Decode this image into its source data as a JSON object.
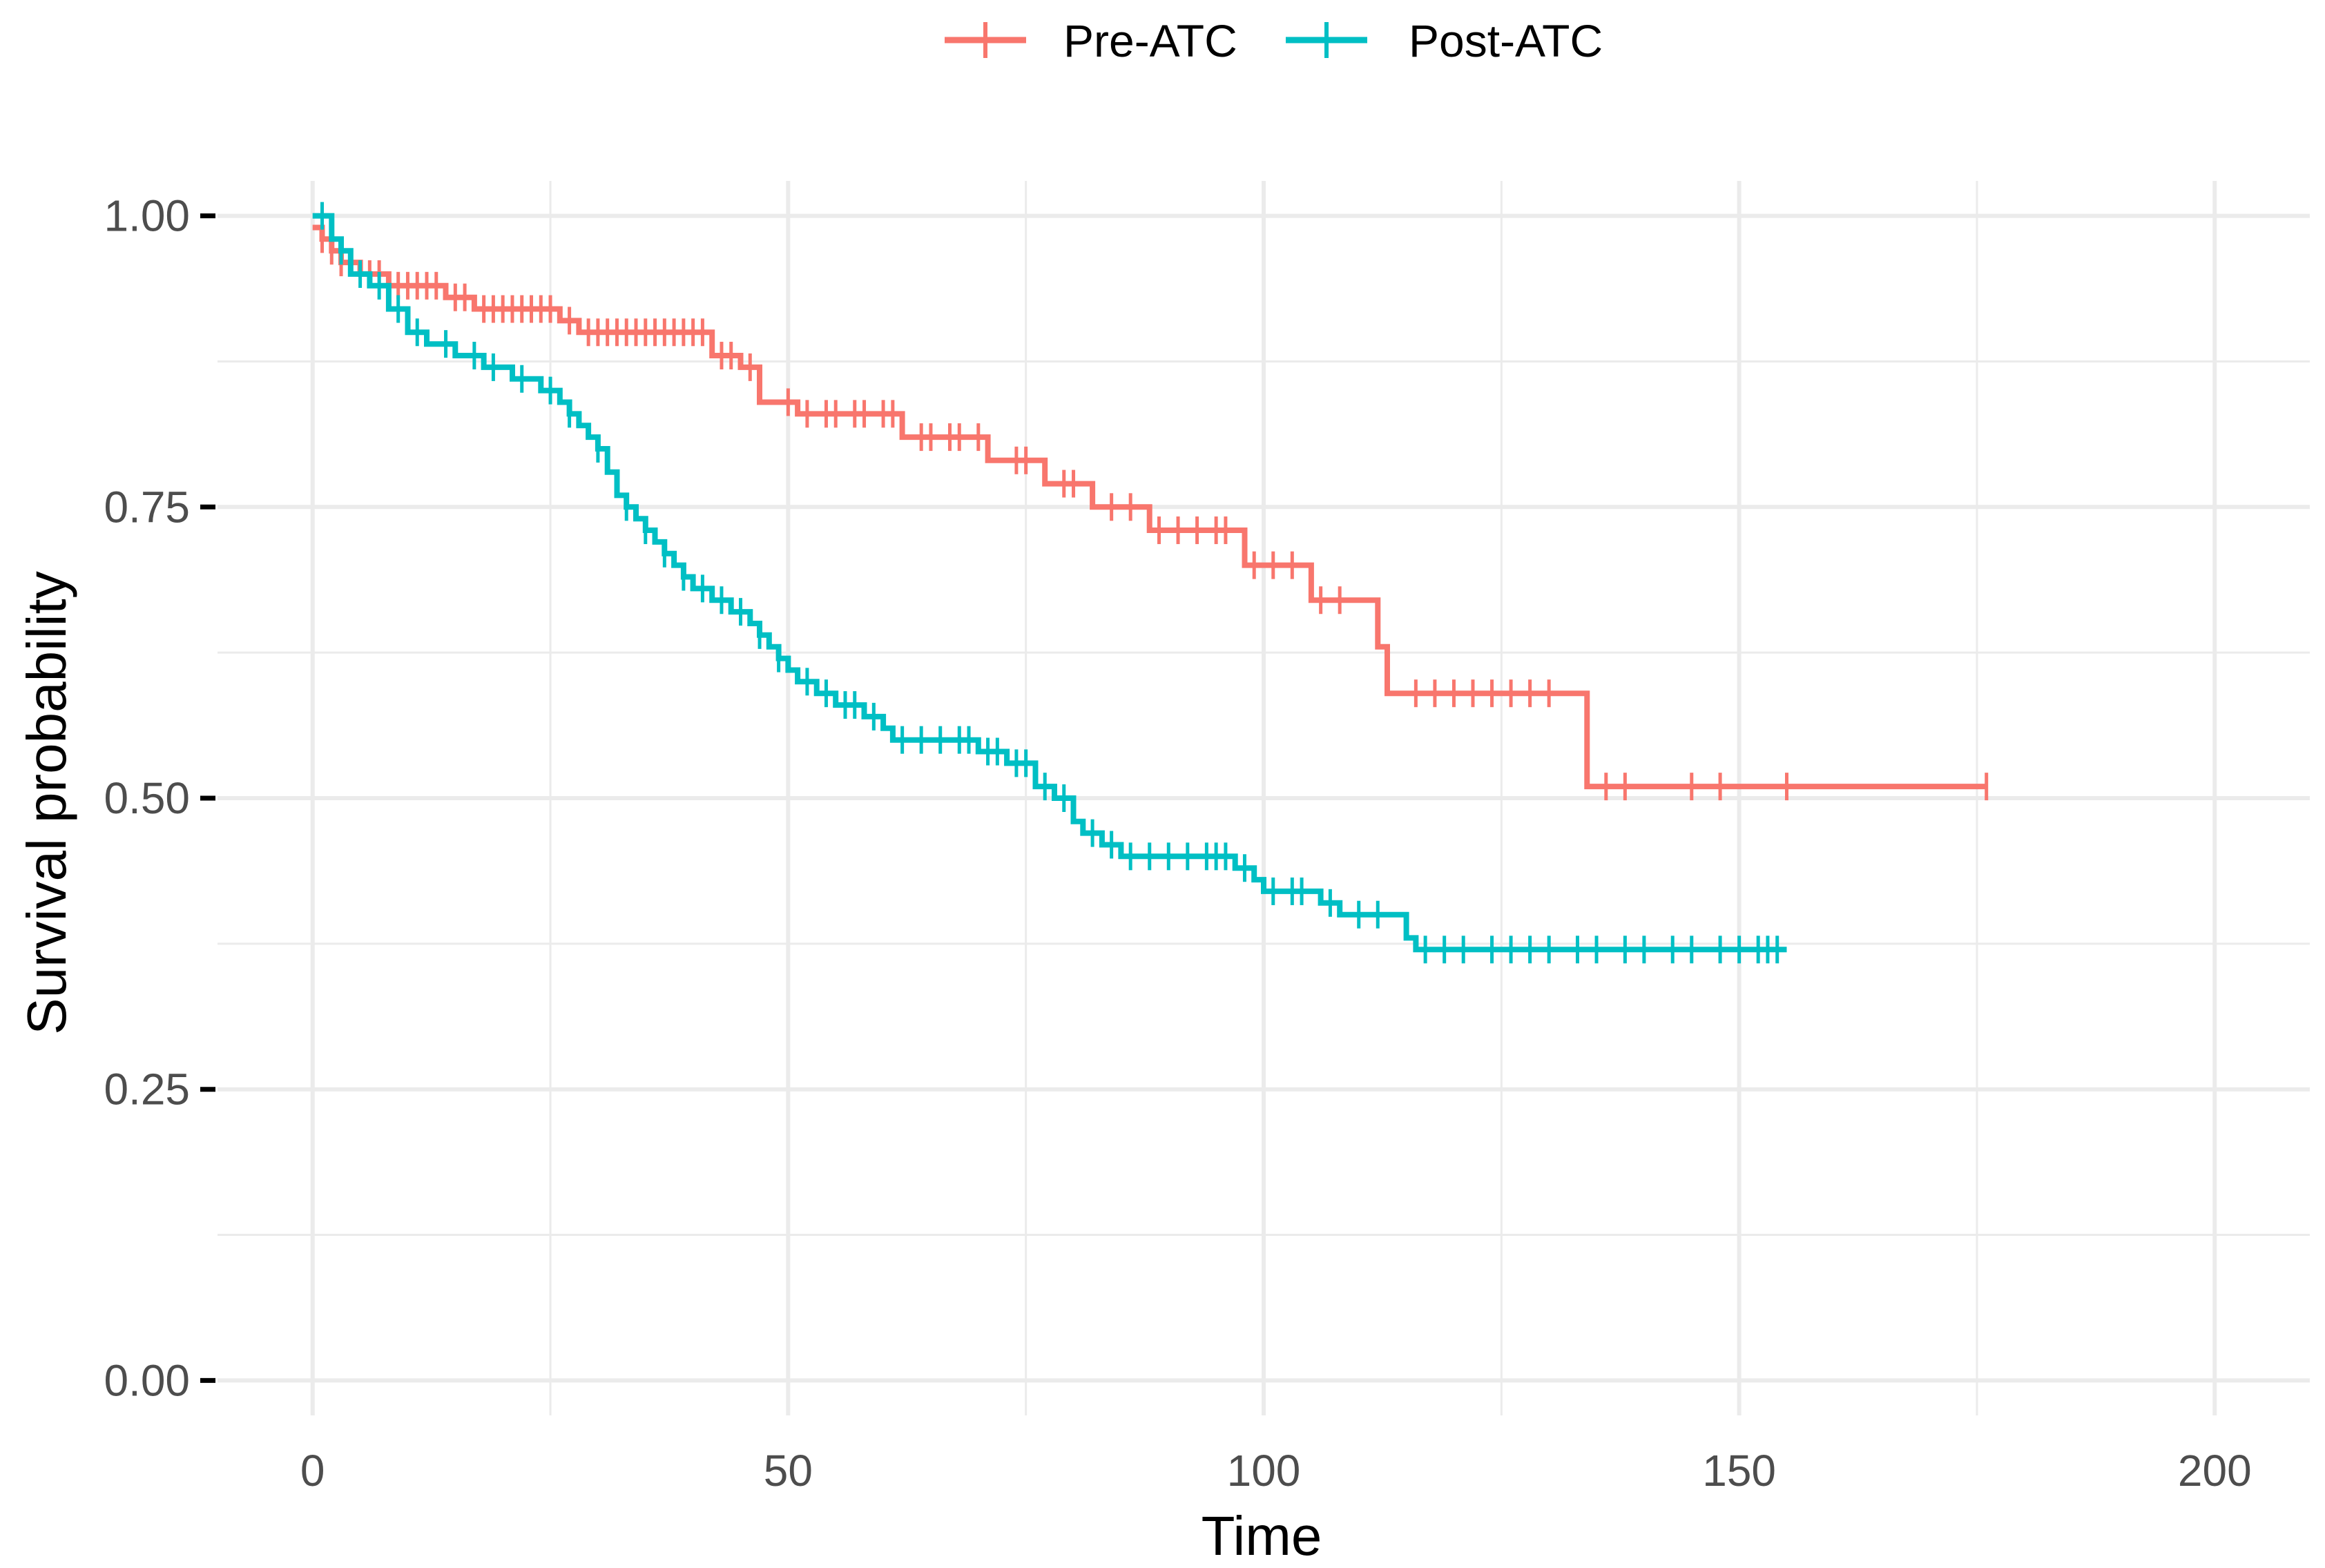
{
  "chart_data": {
    "type": "line",
    "title": "",
    "xlabel": "Time",
    "ylabel": "Survival probability",
    "xlim": [
      -10,
      210
    ],
    "ylim": [
      -0.03,
      1.03
    ],
    "x_ticks": [
      0,
      50,
      100,
      150,
      200
    ],
    "y_ticks": [
      0.0,
      0.25,
      0.5,
      0.75,
      1.0
    ],
    "x_tick_labels": [
      "0",
      "50",
      "100",
      "150",
      "200"
    ],
    "y_tick_labels": [
      "0.00",
      "0.25",
      "0.50",
      "0.75",
      "1.00"
    ],
    "grid": true,
    "legend_position": "top",
    "step": "post",
    "series": [
      {
        "name": "Pre-ATC",
        "color": "#F8766D",
        "steps": [
          [
            0,
            0.99
          ],
          [
            1,
            0.98
          ],
          [
            2,
            0.97
          ],
          [
            3,
            0.96
          ],
          [
            5,
            0.95
          ],
          [
            8,
            0.94
          ],
          [
            14,
            0.93
          ],
          [
            17,
            0.92
          ],
          [
            26,
            0.91
          ],
          [
            28,
            0.9
          ],
          [
            42,
            0.88
          ],
          [
            45,
            0.87
          ],
          [
            47,
            0.84
          ],
          [
            51,
            0.83
          ],
          [
            62,
            0.81
          ],
          [
            71,
            0.79
          ],
          [
            77,
            0.77
          ],
          [
            82,
            0.75
          ],
          [
            88,
            0.73
          ],
          [
            98,
            0.7
          ],
          [
            105,
            0.67
          ],
          [
            112,
            0.63
          ],
          [
            113,
            0.59
          ],
          [
            134,
            0.51
          ],
          [
            176,
            0.51
          ]
        ],
        "censored": [
          1,
          2,
          3,
          4,
          6,
          7,
          9,
          10,
          11,
          12,
          13,
          15,
          16,
          18,
          19,
          20,
          21,
          22,
          23,
          24,
          25,
          27,
          29,
          30,
          31,
          32,
          33,
          34,
          35,
          36,
          37,
          38,
          39,
          40,
          41,
          43,
          44,
          46,
          50,
          52,
          54,
          55,
          57,
          58,
          60,
          61,
          64,
          65,
          67,
          68,
          70,
          74,
          75,
          79,
          80,
          84,
          86,
          89,
          91,
          93,
          95,
          96,
          99,
          101,
          103,
          106,
          108,
          116,
          118,
          120,
          122,
          124,
          126,
          128,
          130,
          136,
          138,
          145,
          148,
          155,
          176
        ]
      },
      {
        "name": "Post-ATC",
        "color": "#00BFC4",
        "steps": [
          [
            0,
            1.0
          ],
          [
            2,
            0.98
          ],
          [
            3,
            0.97
          ],
          [
            4,
            0.95
          ],
          [
            6,
            0.94
          ],
          [
            8,
            0.92
          ],
          [
            10,
            0.9
          ],
          [
            12,
            0.89
          ],
          [
            15,
            0.88
          ],
          [
            18,
            0.87
          ],
          [
            21,
            0.86
          ],
          [
            24,
            0.85
          ],
          [
            26,
            0.84
          ],
          [
            27,
            0.83
          ],
          [
            28,
            0.82
          ],
          [
            29,
            0.81
          ],
          [
            30,
            0.8
          ],
          [
            31,
            0.78
          ],
          [
            32,
            0.76
          ],
          [
            33,
            0.75
          ],
          [
            34,
            0.74
          ],
          [
            35,
            0.73
          ],
          [
            36,
            0.72
          ],
          [
            37,
            0.71
          ],
          [
            38,
            0.7
          ],
          [
            39,
            0.69
          ],
          [
            40,
            0.68
          ],
          [
            42,
            0.67
          ],
          [
            44,
            0.66
          ],
          [
            46,
            0.65
          ],
          [
            47,
            0.64
          ],
          [
            48,
            0.63
          ],
          [
            49,
            0.62
          ],
          [
            50,
            0.61
          ],
          [
            51,
            0.6
          ],
          [
            53,
            0.59
          ],
          [
            55,
            0.58
          ],
          [
            58,
            0.57
          ],
          [
            60,
            0.56
          ],
          [
            61,
            0.55
          ],
          [
            70,
            0.54
          ],
          [
            73,
            0.53
          ],
          [
            76,
            0.51
          ],
          [
            78,
            0.5
          ],
          [
            80,
            0.48
          ],
          [
            81,
            0.47
          ],
          [
            83,
            0.46
          ],
          [
            85,
            0.45
          ],
          [
            97,
            0.44
          ],
          [
            99,
            0.43
          ],
          [
            100,
            0.42
          ],
          [
            106,
            0.41
          ],
          [
            108,
            0.4
          ],
          [
            115,
            0.38
          ],
          [
            116,
            0.37
          ],
          [
            155,
            0.37
          ]
        ],
        "censored": [
          1,
          3,
          5,
          7,
          9,
          11,
          14,
          17,
          19,
          22,
          25,
          27,
          30,
          33,
          35,
          37,
          39,
          41,
          43,
          45,
          47,
          49,
          52,
          54,
          56,
          57,
          59,
          62,
          64,
          66,
          68,
          69,
          71,
          72,
          74,
          75,
          77,
          79,
          82,
          84,
          86,
          88,
          90,
          92,
          94,
          95,
          96,
          98,
          101,
          103,
          104,
          107,
          110,
          112,
          117,
          119,
          121,
          124,
          126,
          128,
          130,
          133,
          135,
          138,
          140,
          143,
          145,
          148,
          150,
          152,
          153,
          154
        ]
      }
    ]
  }
}
